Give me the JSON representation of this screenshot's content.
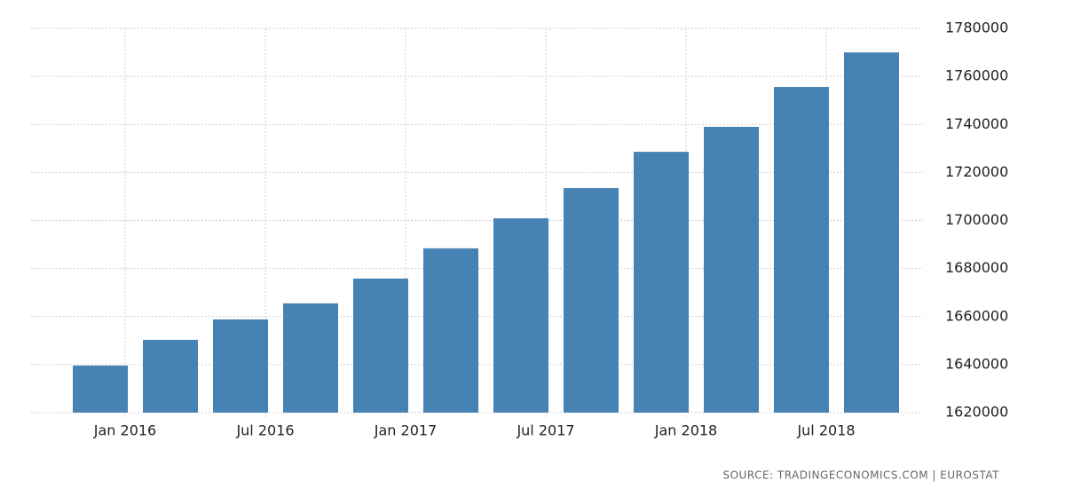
{
  "chart_data": {
    "type": "bar",
    "categories": [
      "Jan 2016",
      null,
      "Jul 2016",
      null,
      "Jan 2017",
      null,
      "Jul 2017",
      null,
      "Jan 2018",
      null,
      "Jul 2018",
      null
    ],
    "values": [
      1639600,
      1650300,
      1658800,
      1665500,
      1675800,
      1688400,
      1700900,
      1713500,
      1728600,
      1739000,
      1755600,
      1770000
    ],
    "color": "#4682b4",
    "ylim": [
      1620000,
      1780000
    ],
    "yticks": [
      1620000,
      1640000,
      1660000,
      1680000,
      1700000,
      1720000,
      1740000,
      1760000,
      1780000
    ],
    "grid": true,
    "source": "SOURCE:  TRADINGECONOMICS.COM  |  EUROSTAT"
  }
}
